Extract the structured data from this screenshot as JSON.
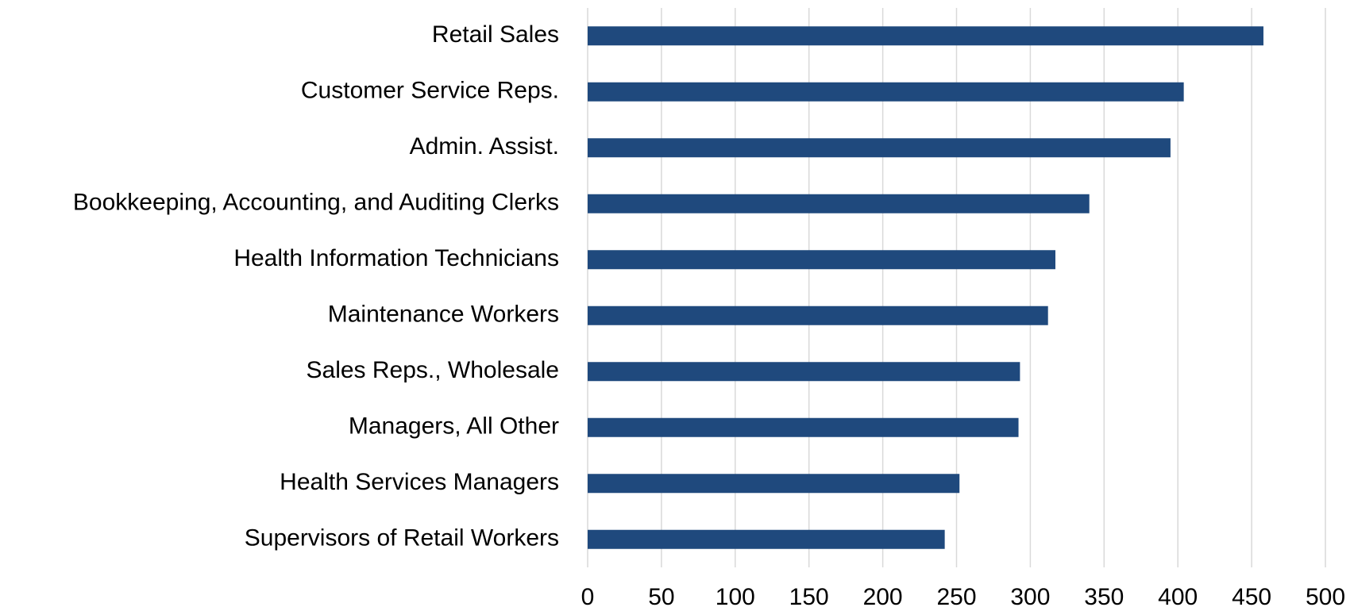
{
  "chart_data": {
    "type": "hbar",
    "categories": [
      "Retail Sales",
      "Customer Service Reps.",
      "Admin. Assist.",
      "Bookkeeping, Accounting, and Auditing Clerks",
      "Health Information Technicians",
      "Maintenance Workers",
      "Sales Reps., Wholesale",
      "Managers, All Other",
      "Health Services Managers",
      "Supervisors of Retail Workers"
    ],
    "values": [
      458,
      404,
      395,
      340,
      317,
      312,
      293,
      292,
      252,
      242
    ],
    "color": "#1f497d",
    "xlim": [
      0,
      500
    ],
    "xticks": [
      0,
      50,
      100,
      150,
      200,
      250,
      300,
      350,
      400,
      450,
      500
    ],
    "grid": true
  }
}
